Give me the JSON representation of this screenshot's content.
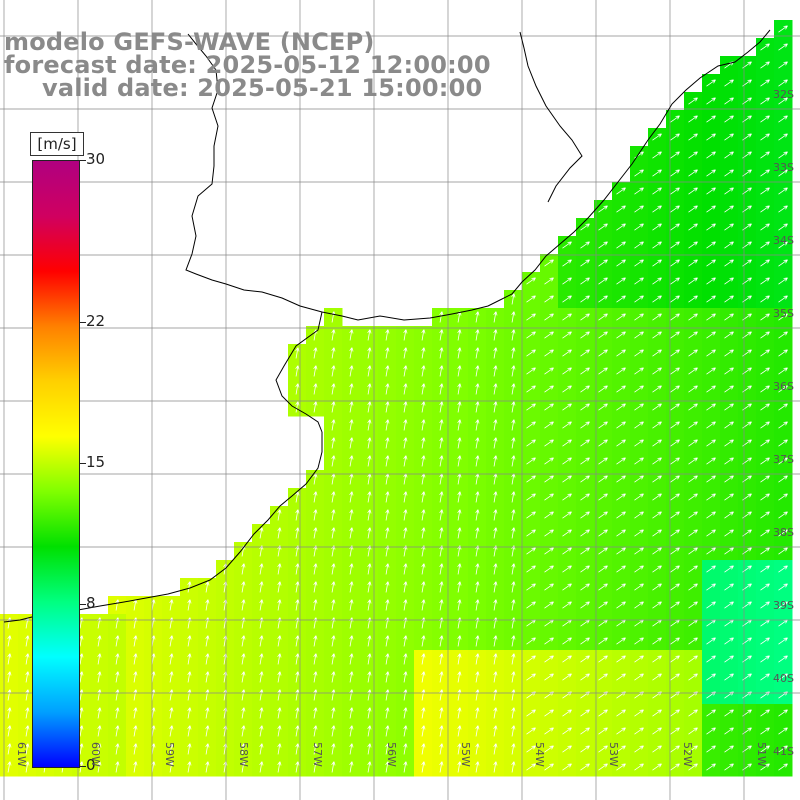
{
  "title": {
    "line1": "modelo GEFS-WAVE (NCEP)",
    "line2": "forecast date: 2025-05-12 12:00:00",
    "line3": "valid date: 2025-05-21 15:00:00"
  },
  "colorbar": {
    "units": "[m/s]",
    "min": 0,
    "max": 30,
    "ticks": [
      {
        "value": 30,
        "label": "30"
      },
      {
        "value": 22,
        "label": "22"
      },
      {
        "value": 15,
        "label": "15"
      },
      {
        "value": 8,
        "label": "8"
      },
      {
        "value": 0,
        "label": "0"
      }
    ],
    "colors": [
      "#0000ff",
      "#00a0ff",
      "#00ffff",
      "#00ff80",
      "#00e000",
      "#80ff00",
      "#ffff00",
      "#ffd000",
      "#ff8000",
      "#ff0000",
      "#d00060",
      "#b00080"
    ]
  },
  "map": {
    "lat_labels": [
      "32S",
      "33S",
      "34S",
      "35S",
      "36S",
      "37S",
      "38S",
      "39S",
      "40S",
      "41S"
    ],
    "lon_labels": [
      "61W",
      "60W",
      "59W",
      "58W",
      "57W",
      "56W",
      "55W",
      "54W",
      "53W",
      "52W",
      "51W"
    ],
    "land_color": "#ffffff",
    "grid_color": "#888888",
    "arrow_color": "#ffffff",
    "coast_color": "#000000"
  }
}
